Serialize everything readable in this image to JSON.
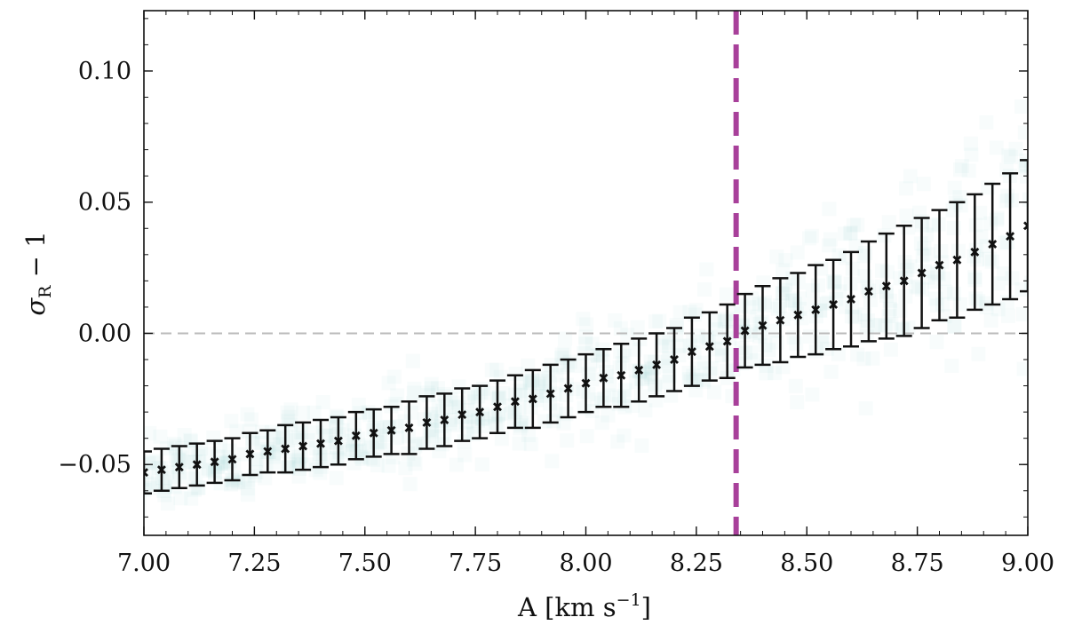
{
  "chart_data": {
    "type": "scatter",
    "title": "",
    "xlabel": "A [km s",
    "xlabel_superscript": "−1",
    "xlabel_suffix": "]",
    "ylabel_symbol": "σ",
    "ylabel_subscript": "R",
    "ylabel_suffix": " − 1",
    "xlim": [
      7.0,
      9.0
    ],
    "ylim": [
      -0.077,
      0.123
    ],
    "x_ticks": [
      "7.00",
      "7.25",
      "7.50",
      "7.75",
      "8.00",
      "8.25",
      "8.50",
      "8.75",
      "9.00"
    ],
    "x_tick_values": [
      7.0,
      7.25,
      7.5,
      7.75,
      8.0,
      8.25,
      8.5,
      8.75,
      9.0
    ],
    "y_ticks": [
      "−0.05",
      "0.00",
      "0.05",
      "0.10"
    ],
    "y_tick_values": [
      -0.05,
      0.0,
      0.05,
      0.1
    ],
    "grid": false,
    "reference_lines": {
      "horizontal_y": 0.0,
      "horizontal_color": "#bbbbbb",
      "vertical_x": 8.34,
      "vertical_color": "#a8409a"
    },
    "series": [
      {
        "kind": "mean_with_errorbars",
        "marker": "x",
        "color": "#111111",
        "x": [
          7.0,
          7.04,
          7.08,
          7.12,
          7.16,
          7.2,
          7.24,
          7.28,
          7.32,
          7.36,
          7.4,
          7.44,
          7.48,
          7.52,
          7.56,
          7.6,
          7.64,
          7.68,
          7.72,
          7.76,
          7.8,
          7.84,
          7.88,
          7.92,
          7.96,
          8.0,
          8.04,
          8.08,
          8.12,
          8.16,
          8.2,
          8.24,
          8.28,
          8.32,
          8.36,
          8.4,
          8.44,
          8.48,
          8.52,
          8.56,
          8.6,
          8.64,
          8.68,
          8.72,
          8.76,
          8.8,
          8.84,
          8.88,
          8.92,
          8.96,
          9.0
        ],
        "y": [
          -0.053,
          -0.052,
          -0.051,
          -0.05,
          -0.049,
          -0.048,
          -0.046,
          -0.045,
          -0.044,
          -0.043,
          -0.042,
          -0.041,
          -0.039,
          -0.038,
          -0.037,
          -0.036,
          -0.034,
          -0.033,
          -0.031,
          -0.03,
          -0.028,
          -0.026,
          -0.025,
          -0.023,
          -0.021,
          -0.019,
          -0.017,
          -0.016,
          -0.014,
          -0.012,
          -0.01,
          -0.007,
          -0.005,
          -0.003,
          0.001,
          0.003,
          0.005,
          0.007,
          0.009,
          0.011,
          0.013,
          0.016,
          0.018,
          0.02,
          0.023,
          0.026,
          0.028,
          0.031,
          0.034,
          0.037,
          0.041
        ],
        "yerr": [
          0.008,
          0.008,
          0.008,
          0.008,
          0.008,
          0.008,
          0.008,
          0.008,
          0.009,
          0.009,
          0.009,
          0.009,
          0.009,
          0.009,
          0.009,
          0.01,
          0.01,
          0.01,
          0.01,
          0.01,
          0.01,
          0.01,
          0.011,
          0.011,
          0.011,
          0.011,
          0.011,
          0.012,
          0.012,
          0.012,
          0.012,
          0.013,
          0.013,
          0.014,
          0.014,
          0.015,
          0.016,
          0.016,
          0.017,
          0.017,
          0.018,
          0.019,
          0.02,
          0.021,
          0.021,
          0.021,
          0.022,
          0.022,
          0.023,
          0.024,
          0.025
        ]
      },
      {
        "kind": "scatter_cloud",
        "marker": "square",
        "color": "#a9d3df",
        "opacity": 0.08,
        "note_range": "points spread around the mean curve at every x"
      }
    ]
  }
}
